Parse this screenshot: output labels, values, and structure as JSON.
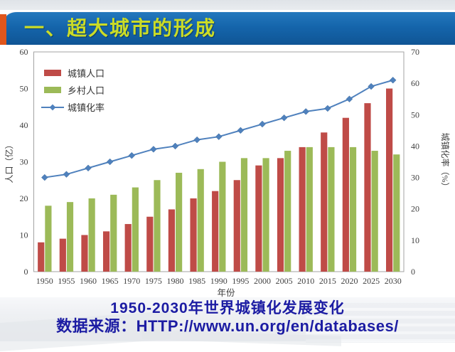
{
  "slide": {
    "title": "一、超大城市的形成",
    "caption_line1": "1950-2030年世界城镇化发展变化",
    "caption_line2": "数据来源：HTTP://www.un.org/en/databases/"
  },
  "colors": {
    "title_bar_top": "#2478bd",
    "title_bar_bottom": "#0f5595",
    "title_accent_orange": "#e0561c",
    "title_text_yellow": "#cbdc27",
    "urban_bar_red": "#bf4b47",
    "rural_bar_green": "#9cba58",
    "rate_line_blue": "#4f81bd",
    "caption_navy": "#1c1ca3",
    "axis_text": "#404040",
    "plot_border": "#a3a3a3"
  },
  "chart_data": {
    "type": "bar",
    "subtype": "bar+line-combo",
    "categories": [
      "1950",
      "1955",
      "1960",
      "1965",
      "1970",
      "1975",
      "1980",
      "1985",
      "1990",
      "1995",
      "2000",
      "2005",
      "2010",
      "2015",
      "2020",
      "2025",
      "2030"
    ],
    "series": [
      {
        "name": "城镇人口",
        "type": "bar",
        "axis": "left",
        "color": "#bf4b47",
        "values": [
          8,
          9,
          10,
          11,
          13,
          15,
          17,
          20,
          22,
          25,
          29,
          31,
          34,
          38,
          42,
          46,
          50
        ]
      },
      {
        "name": "乡村人口",
        "type": "bar",
        "axis": "left",
        "color": "#9cba58",
        "values": [
          18,
          19,
          20,
          21,
          23,
          25,
          27,
          28,
          30,
          31,
          31,
          33,
          34,
          34,
          34,
          33,
          32
        ]
      },
      {
        "name": "城镇化率",
        "type": "line",
        "axis": "right",
        "color": "#4f81bd",
        "values": [
          30,
          31,
          33,
          35,
          37,
          39,
          40,
          42,
          43,
          45,
          47,
          49,
          51,
          52,
          55,
          59,
          61
        ]
      }
    ],
    "xlabel": "年份",
    "ylabel_left": "人口（亿）",
    "ylabel_right": "城镇化率（%）",
    "ylim_left": [
      0,
      60
    ],
    "ylim_right": [
      0,
      70
    ],
    "ytick_step_left": 10,
    "ytick_step_right": 10,
    "legend_position": "top-left-inside",
    "grid": false,
    "marker": "diamond"
  }
}
